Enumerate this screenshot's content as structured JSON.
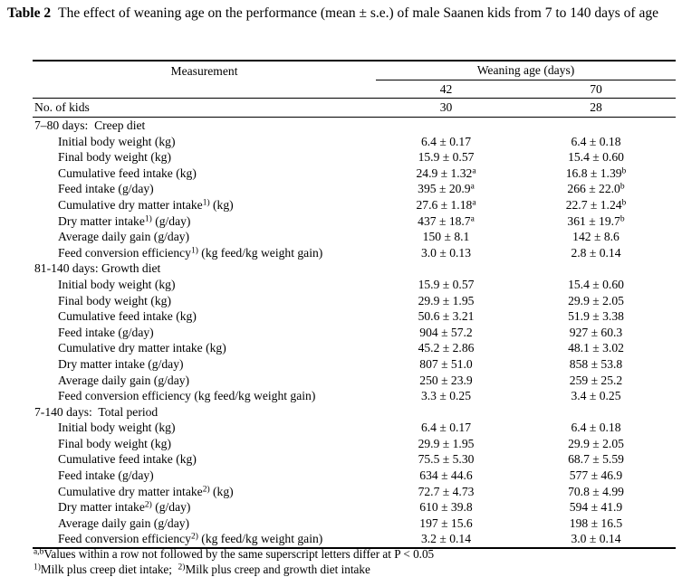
{
  "page": {
    "title_label": "Table 2",
    "title_text": "The effect of weaning age on the performance (mean ± s.e.) of male Saanen kids from 7 to 140 days of age"
  },
  "table": {
    "measurement_header": "Measurement",
    "spanner_header": "Weaning age (days)",
    "column_headers": [
      "42",
      "70"
    ],
    "count_row": {
      "label": "No. of kids",
      "values": [
        "30",
        "28"
      ]
    },
    "sections": [
      {
        "header": "7–80 days:  Creep diet",
        "rows": [
          {
            "label": [
              "Initial body weight (kg)",
              "",
              ""
            ],
            "values": [
              [
                "6.4 ± 0.17",
                ""
              ],
              [
                "6.4 ± 0.18",
                ""
              ]
            ]
          },
          {
            "label": [
              "Final body weight (kg)",
              "",
              ""
            ],
            "values": [
              [
                "15.9 ± 0.57",
                ""
              ],
              [
                "15.4 ± 0.60",
                ""
              ]
            ]
          },
          {
            "label": [
              "Cumulative feed intake (kg)",
              "",
              ""
            ],
            "values": [
              [
                "24.9 ± 1.32",
                "a"
              ],
              [
                "16.8 ± 1.39",
                "b"
              ]
            ]
          },
          {
            "label": [
              "Feed intake (g/day)",
              "",
              ""
            ],
            "values": [
              [
                "395 ± 20.9",
                "a"
              ],
              [
                "266 ± 22.0",
                "b"
              ]
            ]
          },
          {
            "label": [
              "Cumulative dry matter intake",
              "1)",
              " (kg)"
            ],
            "values": [
              [
                "27.6 ± 1.18",
                "a"
              ],
              [
                "22.7 ± 1.24",
                "b"
              ]
            ]
          },
          {
            "label": [
              "Dry matter intake",
              "1)",
              " (g/day)"
            ],
            "values": [
              [
                "437 ± 18.7",
                "a"
              ],
              [
                "361 ± 19.7",
                "b"
              ]
            ]
          },
          {
            "label": [
              "Average daily gain (g/day)",
              "",
              ""
            ],
            "values": [
              [
                "150 ± 8.1",
                ""
              ],
              [
                "142 ± 8.6",
                ""
              ]
            ]
          },
          {
            "label": [
              "Feed conversion efficiency",
              "1)",
              " (kg feed/kg weight gain)"
            ],
            "values": [
              [
                "3.0 ± 0.13",
                ""
              ],
              [
                "2.8 ± 0.14",
                ""
              ]
            ]
          }
        ]
      },
      {
        "header": "81-140 days: Growth diet",
        "rows": [
          {
            "label": [
              "Initial body weight (kg)",
              "",
              ""
            ],
            "values": [
              [
                "15.9 ± 0.57",
                ""
              ],
              [
                "15.4 ± 0.60",
                ""
              ]
            ]
          },
          {
            "label": [
              "Final body weight (kg)",
              "",
              ""
            ],
            "values": [
              [
                "29.9 ± 1.95",
                ""
              ],
              [
                "29.9 ± 2.05",
                ""
              ]
            ]
          },
          {
            "label": [
              "Cumulative feed intake (kg)",
              "",
              ""
            ],
            "values": [
              [
                "50.6 ± 3.21",
                ""
              ],
              [
                "51.9 ± 3.38",
                ""
              ]
            ]
          },
          {
            "label": [
              "Feed intake (g/day)",
              "",
              ""
            ],
            "values": [
              [
                "904 ± 57.2",
                ""
              ],
              [
                "927 ± 60.3",
                ""
              ]
            ]
          },
          {
            "label": [
              "Cumulative dry matter intake (kg)",
              "",
              ""
            ],
            "values": [
              [
                "45.2 ± 2.86",
                ""
              ],
              [
                "48.1 ± 3.02",
                ""
              ]
            ]
          },
          {
            "label": [
              "Dry matter intake (g/day)",
              "",
              ""
            ],
            "values": [
              [
                "807 ± 51.0",
                ""
              ],
              [
                "858 ± 53.8",
                ""
              ]
            ]
          },
          {
            "label": [
              "Average daily gain (g/day)",
              "",
              ""
            ],
            "values": [
              [
                "250 ± 23.9",
                ""
              ],
              [
                "259 ± 25.2",
                ""
              ]
            ]
          },
          {
            "label": [
              "Feed conversion efficiency (kg feed/kg weight gain)",
              "",
              ""
            ],
            "values": [
              [
                "3.3 ± 0.25",
                ""
              ],
              [
                "3.4 ± 0.25",
                ""
              ]
            ]
          }
        ]
      },
      {
        "header": "7-140 days:  Total period",
        "rows": [
          {
            "label": [
              "Initial body weight (kg)",
              "",
              ""
            ],
            "values": [
              [
                "6.4 ± 0.17",
                ""
              ],
              [
                "6.4 ± 0.18",
                ""
              ]
            ]
          },
          {
            "label": [
              "Final body weight (kg)",
              "",
              ""
            ],
            "values": [
              [
                "29.9 ± 1.95",
                ""
              ],
              [
                "29.9 ± 2.05",
                ""
              ]
            ]
          },
          {
            "label": [
              "Cumulative feed intake (kg)",
              "",
              ""
            ],
            "values": [
              [
                "75.5 ± 5.30",
                ""
              ],
              [
                "68.7 ± 5.59",
                ""
              ]
            ]
          },
          {
            "label": [
              "Feed intake (g/day)",
              "",
              ""
            ],
            "values": [
              [
                "634 ± 44.6",
                ""
              ],
              [
                "577 ± 46.9",
                ""
              ]
            ]
          },
          {
            "label": [
              "Cumulative dry matter intake",
              "2)",
              " (kg)"
            ],
            "values": [
              [
                "72.7 ± 4.73",
                ""
              ],
              [
                "70.8 ± 4.99",
                ""
              ]
            ]
          },
          {
            "label": [
              "Dry matter intake",
              "2)",
              " (g/day)"
            ],
            "values": [
              [
                "610 ± 39.8",
                ""
              ],
              [
                "594 ± 41.9",
                ""
              ]
            ]
          },
          {
            "label": [
              "Average daily gain (g/day)",
              "",
              ""
            ],
            "values": [
              [
                "197 ± 15.6",
                ""
              ],
              [
                "198 ± 16.5",
                ""
              ]
            ]
          },
          {
            "label": [
              "Feed conversion efficiency",
              "2)",
              " (kg feed/kg weight gain)"
            ],
            "values": [
              [
                "3.2 ± 0.14",
                ""
              ],
              [
                "3.0 ± 0.14",
                ""
              ]
            ]
          }
        ]
      }
    ]
  },
  "footnotes": [
    [
      {
        "sup": "a,b",
        "text": "Values within a row not followed by the same superscript letters differ at P < 0.05"
      }
    ],
    [
      {
        "sup": "1)",
        "text": "Milk plus creep diet intake;  "
      },
      {
        "sup": "2)",
        "text": "Milk plus creep and growth diet intake"
      }
    ]
  ]
}
